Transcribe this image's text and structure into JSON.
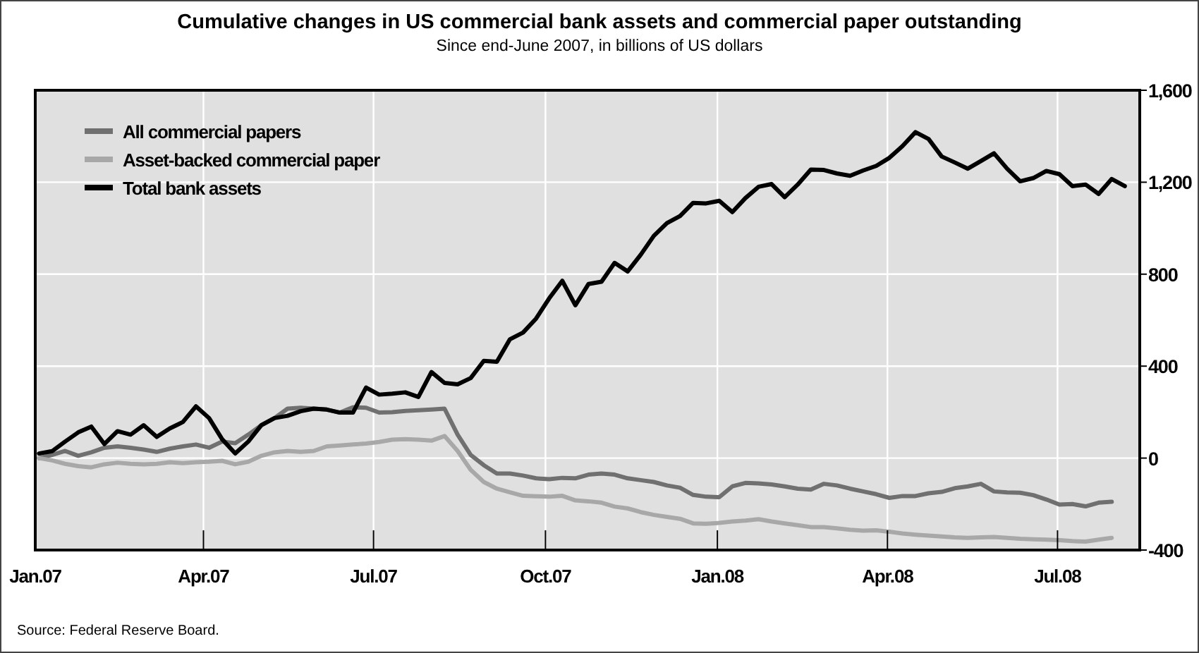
{
  "chart_data": {
    "type": "line",
    "title": "Cumulative changes in US commercial bank assets and commercial paper outstanding",
    "subtitle": "Since end-June 2007, in billions of US dollars",
    "annotations": [
      "Source: Federal Reserve Board."
    ],
    "x": [
      "2007-01-03",
      "2007-01-10",
      "2007-01-17",
      "2007-01-24",
      "2007-01-31",
      "2007-02-07",
      "2007-02-14",
      "2007-02-21",
      "2007-02-28",
      "2007-03-07",
      "2007-03-14",
      "2007-03-21",
      "2007-03-28",
      "2007-04-04",
      "2007-04-11",
      "2007-04-18",
      "2007-04-25",
      "2007-05-02",
      "2007-05-09",
      "2007-05-16",
      "2007-05-23",
      "2007-05-30",
      "2007-06-06",
      "2007-06-13",
      "2007-06-20",
      "2007-06-27",
      "2007-07-04",
      "2007-07-11",
      "2007-07-18",
      "2007-07-25",
      "2007-08-01",
      "2007-08-08",
      "2007-08-15",
      "2007-08-22",
      "2007-08-29",
      "2007-09-05",
      "2007-09-12",
      "2007-09-19",
      "2007-09-26",
      "2007-10-03",
      "2007-10-10",
      "2007-10-17",
      "2007-10-24",
      "2007-10-31",
      "2007-11-07",
      "2007-11-14",
      "2007-11-21",
      "2007-11-28",
      "2007-12-05",
      "2007-12-12",
      "2007-12-19",
      "2007-12-26",
      "2008-01-02",
      "2008-01-09",
      "2008-01-16",
      "2008-01-23",
      "2008-01-30",
      "2008-02-06",
      "2008-02-13",
      "2008-02-20",
      "2008-02-27",
      "2008-03-05",
      "2008-03-12",
      "2008-03-19",
      "2008-03-26",
      "2008-04-02",
      "2008-04-09",
      "2008-04-16",
      "2008-04-23",
      "2008-04-30",
      "2008-05-07",
      "2008-05-14",
      "2008-05-21",
      "2008-05-28",
      "2008-06-04",
      "2008-06-11",
      "2008-06-18",
      "2008-06-25",
      "2008-07-02",
      "2008-07-09",
      "2008-07-16",
      "2008-07-23",
      "2008-07-30",
      "2008-08-06"
    ],
    "series": [
      {
        "name": "All commercial papers",
        "color": "#707070",
        "values": [
          0,
          14,
          31,
          10,
          25,
          45,
          51,
          45,
          37,
          27,
          41,
          51,
          59,
          45,
          72,
          65,
          102,
          143,
          174,
          215,
          219,
          215,
          211,
          198,
          221,
          219,
          198,
          200,
          205,
          208,
          211,
          215,
          102,
          14,
          -31,
          -67,
          -67,
          -76,
          -88,
          -92,
          -86,
          -88,
          -72,
          -67,
          -72,
          -88,
          -96,
          -104,
          -119,
          -129,
          -160,
          -168,
          -170,
          -123,
          -108,
          -110,
          -115,
          -123,
          -133,
          -137,
          -112,
          -119,
          -133,
          -145,
          -157,
          -173,
          -165,
          -165,
          -153,
          -147,
          -131,
          -123,
          -112,
          -145,
          -149,
          -151,
          -161,
          -180,
          -202,
          -200,
          -210,
          -194,
          -190,
          null
        ]
      },
      {
        "name": "Asset-backed commercial paper",
        "color": "#a8a8a8",
        "values": [
          0,
          -10,
          -25,
          -35,
          -40,
          -27,
          -20,
          -25,
          -27,
          -25,
          -18,
          -22,
          -18,
          -16,
          -12,
          -27,
          -16,
          10,
          25,
          31,
          27,
          31,
          51,
          55,
          59,
          63,
          70,
          80,
          82,
          80,
          76,
          96,
          31,
          -51,
          -104,
          -133,
          -149,
          -164,
          -166,
          -168,
          -164,
          -184,
          -188,
          -194,
          -211,
          -219,
          -235,
          -247,
          -256,
          -264,
          -284,
          -286,
          -282,
          -276,
          -272,
          -266,
          -276,
          -284,
          -292,
          -300,
          -300,
          -306,
          -312,
          -316,
          -314,
          -320,
          -328,
          -333,
          -337,
          -341,
          -345,
          -347,
          -345,
          -343,
          -347,
          -351,
          -353,
          -355,
          -357,
          -361,
          -363,
          -355,
          -347,
          null
        ]
      },
      {
        "name": "Total bank assets",
        "color": "#000000",
        "values": [
          20,
          30,
          72,
          112,
          137,
          61,
          117,
          102,
          143,
          92,
          129,
          157,
          225,
          174,
          82,
          20,
          72,
          143,
          174,
          184,
          204,
          215,
          211,
          198,
          198,
          307,
          276,
          280,
          286,
          266,
          374,
          327,
          321,
          348,
          423,
          419,
          517,
          546,
          607,
          695,
          771,
          665,
          757,
          767,
          849,
          812,
          885,
          967,
          1022,
          1053,
          1110,
          1108,
          1119,
          1070,
          1131,
          1180,
          1192,
          1135,
          1190,
          1255,
          1253,
          1238,
          1228,
          1251,
          1271,
          1306,
          1357,
          1418,
          1388,
          1312,
          1286,
          1259,
          1292,
          1326,
          1259,
          1204,
          1218,
          1249,
          1235,
          1183,
          1190,
          1149,
          1214,
          1183
        ]
      }
    ],
    "xlim": [
      "2007-01-01",
      "2008-08-14"
    ],
    "xticks": [
      {
        "value": "2007-01-01",
        "label": "Jan.07"
      },
      {
        "value": "2007-04-01",
        "label": "Apr.07"
      },
      {
        "value": "2007-07-01",
        "label": "Jul.07"
      },
      {
        "value": "2007-10-01",
        "label": "Oct.07"
      },
      {
        "value": "2008-01-01",
        "label": "Jan.08"
      },
      {
        "value": "2008-04-01",
        "label": "Apr.08"
      },
      {
        "value": "2008-07-01",
        "label": "Jul.08"
      }
    ],
    "ylim": [
      -400,
      1600
    ],
    "yticks": [
      -400,
      0,
      400,
      800,
      {
        "value": 1200,
        "label": "1,200"
      },
      {
        "value": 1600,
        "label": "1,600"
      }
    ],
    "grid": true,
    "legend": "top left",
    "line_style": "solid",
    "marker": "none"
  }
}
